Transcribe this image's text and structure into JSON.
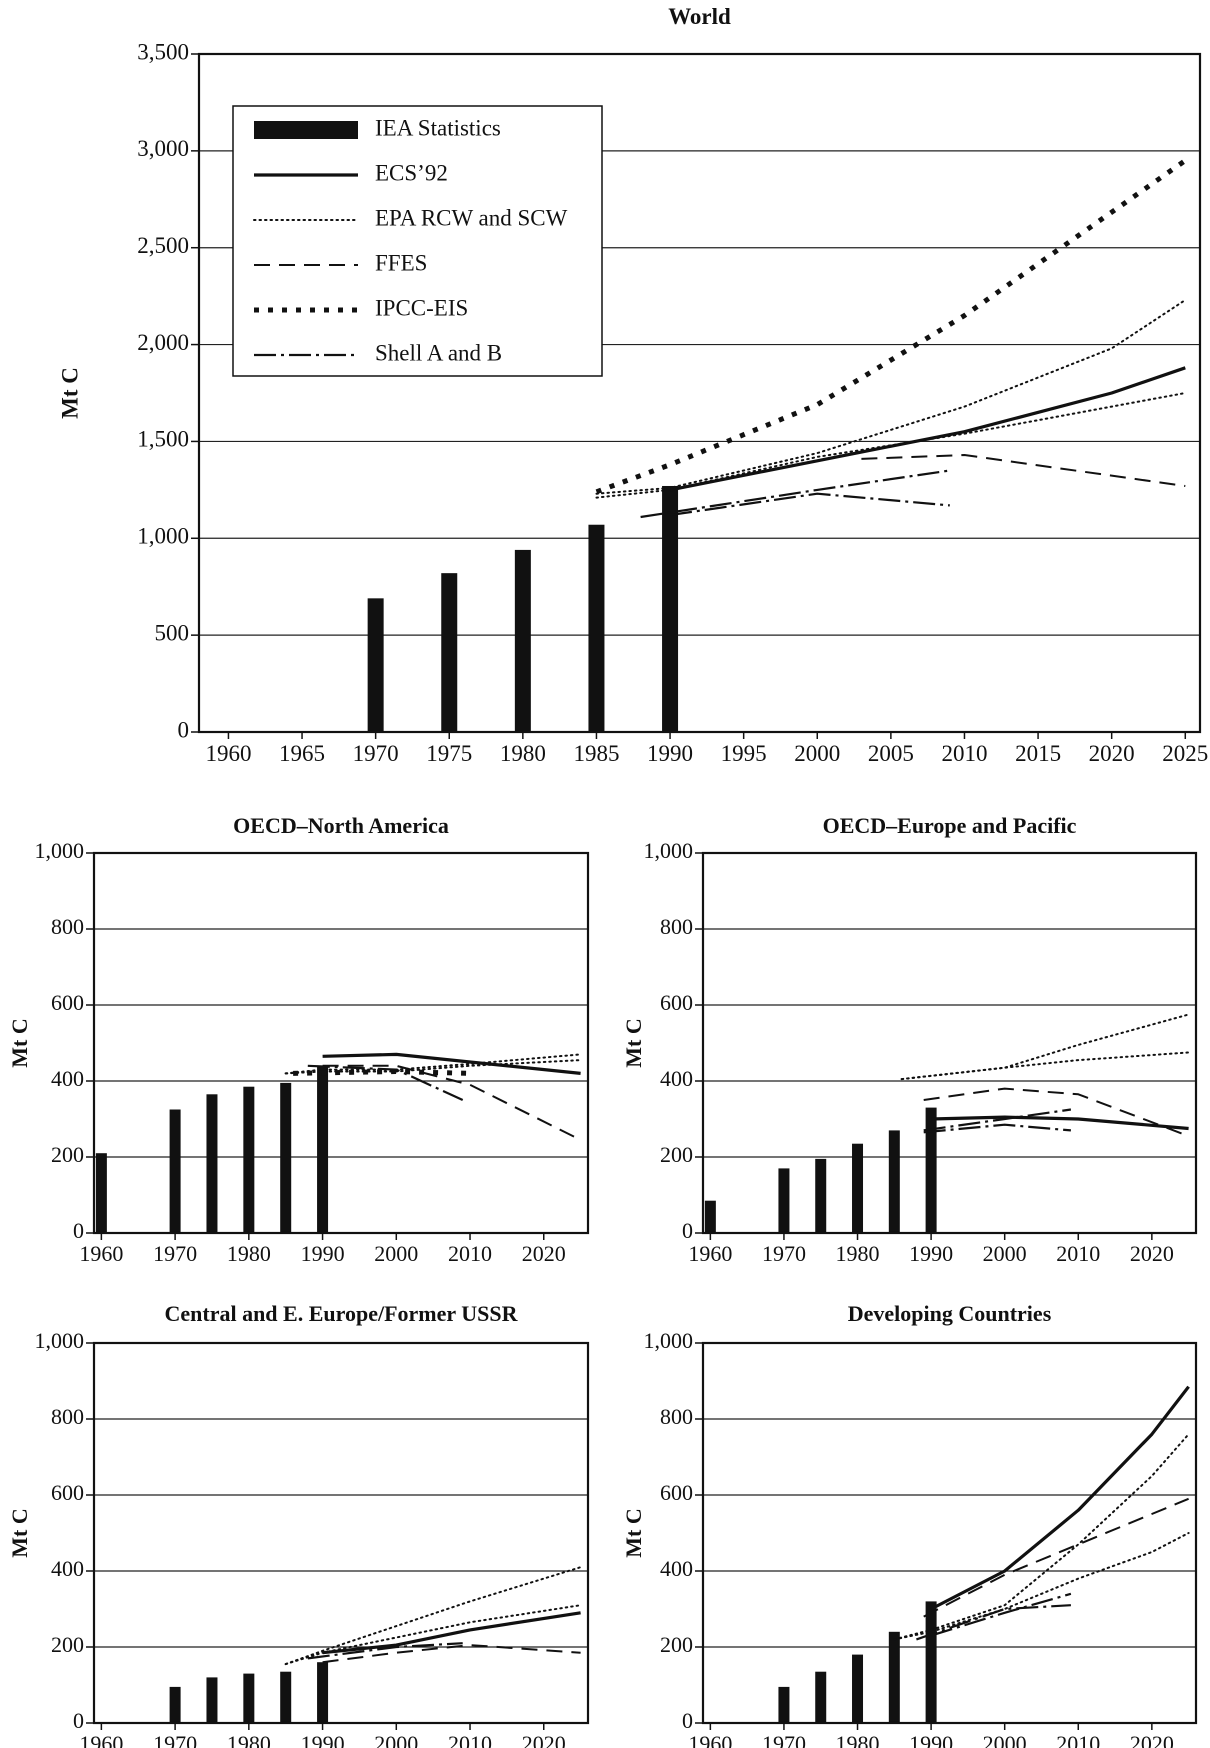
{
  "legend": [
    {
      "key": "iea",
      "label": "IEA Statistics"
    },
    {
      "key": "ecs",
      "label": "ECS’92"
    },
    {
      "key": "epa",
      "label": "EPA RCW and SCW"
    },
    {
      "key": "ffes",
      "label": "FFES"
    },
    {
      "key": "ipcc",
      "label": "IPCC-EIS"
    },
    {
      "key": "shell",
      "label": "Shell A and B"
    }
  ],
  "chart_data": [
    {
      "id": "world",
      "type": "bar+line",
      "title": "World",
      "ylabel": "Mt C",
      "xlim": [
        1958,
        2026
      ],
      "ylim": [
        0,
        3500
      ],
      "x_ticks": [
        1960,
        1965,
        1970,
        1975,
        1980,
        1985,
        1990,
        1995,
        2000,
        2005,
        2010,
        2015,
        2020,
        2025
      ],
      "x_tick_labels": [
        "1960",
        "1965",
        "1970",
        "1975",
        "1980",
        "1985",
        "1990",
        "1995",
        "2000",
        "2005",
        "2010",
        "2015",
        "2020",
        "2025"
      ],
      "y_ticks": [
        0,
        500,
        1000,
        1500,
        2000,
        2500,
        3000,
        3500
      ],
      "y_tick_labels": [
        "0",
        "500",
        "1,000",
        "1,500",
        "2,000",
        "2,500",
        "3,000",
        "3,500"
      ],
      "bars": {
        "name": "IEA Statistics",
        "x": [
          1970,
          1975,
          1980,
          1985,
          1990
        ],
        "values": [
          690,
          820,
          940,
          1070,
          1270
        ]
      },
      "series": [
        {
          "style": "ecs",
          "x": [
            1990,
            2000,
            2010,
            2020,
            2025
          ],
          "y": [
            1250,
            1400,
            1550,
            1750,
            1880
          ]
        },
        {
          "style": "epa",
          "x": [
            1985,
            1990,
            2000,
            2010,
            2020,
            2025
          ],
          "y": [
            1230,
            1260,
            1440,
            1680,
            1980,
            2230
          ]
        },
        {
          "style": "epa",
          "x": [
            1985,
            1990,
            2000,
            2010,
            2020,
            2025
          ],
          "y": [
            1210,
            1250,
            1420,
            1540,
            1680,
            1750
          ]
        },
        {
          "style": "ffes",
          "x": [
            2003,
            2010,
            2025
          ],
          "y": [
            1410,
            1430,
            1270
          ]
        },
        {
          "style": "ipcc",
          "x": [
            1985,
            1990,
            2000,
            2010,
            2025
          ],
          "y": [
            1240,
            1380,
            1690,
            2150,
            2950
          ]
        },
        {
          "style": "shell",
          "x": [
            1988,
            2000,
            2009
          ],
          "y": [
            1110,
            1250,
            1350
          ]
        },
        {
          "style": "shell",
          "x": [
            1990,
            2000,
            2009
          ],
          "y": [
            1120,
            1230,
            1170
          ]
        }
      ]
    },
    {
      "id": "oecd-na",
      "type": "bar+line",
      "title": "OECD–North America",
      "ylabel": "Mt C",
      "xlim": [
        1959,
        2026
      ],
      "ylim": [
        0,
        1000
      ],
      "x_ticks": [
        1960,
        1970,
        1980,
        1990,
        2000,
        2010,
        2020
      ],
      "x_tick_labels": [
        "1960",
        "1970",
        "1980",
        "1990",
        "2000",
        "2010",
        "2020"
      ],
      "y_ticks": [
        0,
        200,
        400,
        600,
        800,
        1000
      ],
      "y_tick_labels": [
        "0",
        "200",
        "400",
        "600",
        "800",
        "1,000"
      ],
      "bars": {
        "name": "IEA Statistics",
        "x": [
          1960,
          1970,
          1975,
          1980,
          1985,
          1990
        ],
        "values": [
          210,
          325,
          365,
          385,
          395,
          440
        ]
      },
      "series": [
        {
          "style": "ecs",
          "x": [
            1990,
            2000,
            2010,
            2025
          ],
          "y": [
            465,
            470,
            450,
            420
          ]
        },
        {
          "style": "epa",
          "x": [
            1985,
            1990,
            2000,
            2010,
            2025
          ],
          "y": [
            420,
            430,
            430,
            445,
            470
          ]
        },
        {
          "style": "epa",
          "x": [
            1985,
            1990,
            2000,
            2010,
            2025
          ],
          "y": [
            420,
            425,
            425,
            440,
            455
          ]
        },
        {
          "style": "ffes",
          "x": [
            1990,
            2000,
            2010,
            2025
          ],
          "y": [
            440,
            440,
            390,
            245
          ]
        },
        {
          "style": "ipcc",
          "x": [
            1986,
            2000,
            2010
          ],
          "y": [
            420,
            425,
            420
          ]
        },
        {
          "style": "shell",
          "x": [
            1988,
            2000,
            2009
          ],
          "y": [
            440,
            430,
            350
          ]
        }
      ]
    },
    {
      "id": "oecd-ep",
      "type": "bar+line",
      "title": "OECD–Europe and Pacific",
      "ylabel": "Mt C",
      "xlim": [
        1959,
        2026
      ],
      "ylim": [
        0,
        1000
      ],
      "x_ticks": [
        1960,
        1970,
        1980,
        1990,
        2000,
        2010,
        2020
      ],
      "x_tick_labels": [
        "1960",
        "1970",
        "1980",
        "1990",
        "2000",
        "2010",
        "2020"
      ],
      "y_ticks": [
        0,
        200,
        400,
        600,
        800,
        1000
      ],
      "y_tick_labels": [
        "0",
        "200",
        "400",
        "600",
        "800",
        "1,000"
      ],
      "bars": {
        "name": "IEA Statistics",
        "x": [
          1960,
          1970,
          1975,
          1980,
          1985,
          1990
        ],
        "values": [
          85,
          170,
          195,
          235,
          270,
          330
        ]
      },
      "series": [
        {
          "style": "ecs",
          "x": [
            1990,
            2000,
            2010,
            2025
          ],
          "y": [
            300,
            305,
            300,
            275
          ]
        },
        {
          "style": "epa",
          "x": [
            1986,
            2000,
            2010,
            2025
          ],
          "y": [
            405,
            435,
            495,
            575
          ]
        },
        {
          "style": "epa",
          "x": [
            1986,
            2000,
            2010,
            2025
          ],
          "y": [
            405,
            435,
            455,
            475
          ]
        },
        {
          "style": "ffes",
          "x": [
            1989,
            2000,
            2010,
            2025
          ],
          "y": [
            350,
            380,
            365,
            255
          ]
        },
        {
          "style": "shell",
          "x": [
            1989,
            2000,
            2009
          ],
          "y": [
            270,
            300,
            325
          ]
        },
        {
          "style": "shell",
          "x": [
            1989,
            2000,
            2009
          ],
          "y": [
            265,
            285,
            270
          ]
        }
      ]
    },
    {
      "id": "ceeu",
      "type": "bar+line",
      "title": "Central and E. Europe/Former USSR",
      "ylabel": "Mt C",
      "xlim": [
        1959,
        2026
      ],
      "ylim": [
        0,
        1000
      ],
      "x_ticks": [
        1960,
        1970,
        1980,
        1990,
        2000,
        2010,
        2020
      ],
      "x_tick_labels": [
        "1960",
        "1970",
        "1980",
        "1990",
        "2000",
        "2010",
        "2020"
      ],
      "y_ticks": [
        0,
        200,
        400,
        600,
        800,
        1000
      ],
      "y_tick_labels": [
        "0",
        "200",
        "400",
        "600",
        "800",
        "1,000"
      ],
      "bars": {
        "name": "IEA Statistics",
        "x": [
          1970,
          1975,
          1980,
          1985,
          1990
        ],
        "values": [
          95,
          120,
          130,
          135,
          160
        ]
      },
      "series": [
        {
          "style": "ecs",
          "x": [
            1990,
            2000,
            2010,
            2025
          ],
          "y": [
            185,
            205,
            245,
            290
          ]
        },
        {
          "style": "epa",
          "x": [
            1985,
            1990,
            2000,
            2010,
            2025
          ],
          "y": [
            155,
            190,
            255,
            320,
            410
          ]
        },
        {
          "style": "epa",
          "x": [
            1985,
            1990,
            2000,
            2010,
            2025
          ],
          "y": [
            155,
            185,
            225,
            265,
            310
          ]
        },
        {
          "style": "ffes",
          "x": [
            1990,
            2000,
            2010,
            2025
          ],
          "y": [
            160,
            185,
            205,
            185
          ]
        },
        {
          "style": "shell",
          "x": [
            1988,
            2000,
            2009
          ],
          "y": [
            170,
            200,
            210
          ]
        }
      ]
    },
    {
      "id": "developing",
      "type": "bar+line",
      "title": "Developing Countries",
      "ylabel": "Mt C",
      "xlim": [
        1959,
        2026
      ],
      "ylim": [
        0,
        1000
      ],
      "x_ticks": [
        1960,
        1970,
        1980,
        1990,
        2000,
        2010,
        2020
      ],
      "x_tick_labels": [
        "1960",
        "1970",
        "1980",
        "1990",
        "2000",
        "2010",
        "2020"
      ],
      "y_ticks": [
        0,
        200,
        400,
        600,
        800,
        1000
      ],
      "y_tick_labels": [
        "0",
        "200",
        "400",
        "600",
        "800",
        "1,000"
      ],
      "bars": {
        "name": "IEA Statistics",
        "x": [
          1970,
          1975,
          1980,
          1985,
          1990
        ],
        "values": [
          95,
          135,
          180,
          240,
          320
        ]
      },
      "series": [
        {
          "style": "ecs",
          "x": [
            1990,
            2000,
            2010,
            2020,
            2025
          ],
          "y": [
            300,
            400,
            560,
            760,
            885
          ]
        },
        {
          "style": "epa",
          "x": [
            1985,
            1990,
            2000,
            2010,
            2020,
            2025
          ],
          "y": [
            220,
            245,
            310,
            470,
            650,
            760
          ]
        },
        {
          "style": "epa",
          "x": [
            1985,
            1990,
            2000,
            2010,
            2020,
            2025
          ],
          "y": [
            220,
            240,
            300,
            380,
            450,
            500
          ]
        },
        {
          "style": "ffes",
          "x": [
            1989,
            2000,
            2010,
            2025
          ],
          "y": [
            280,
            390,
            470,
            590
          ]
        },
        {
          "style": "shell",
          "x": [
            1988,
            2000,
            2009
          ],
          "y": [
            220,
            300,
            310
          ]
        },
        {
          "style": "shell",
          "x": [
            1990,
            2000,
            2009
          ],
          "y": [
            230,
            290,
            340
          ]
        }
      ]
    }
  ]
}
